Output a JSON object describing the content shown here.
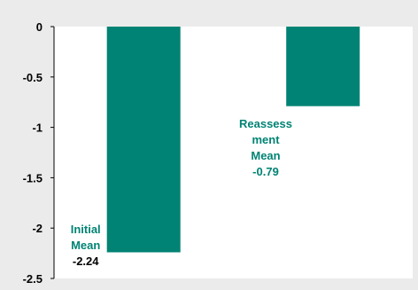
{
  "chart_data": {
    "type": "bar",
    "categories": [
      "Initial Mean",
      "Reassessment Mean"
    ],
    "values": [
      -2.24,
      -0.79
    ],
    "ylim": [
      -2.5,
      0
    ],
    "yticks": [
      "0",
      "-0.5",
      "-1",
      "-1.5",
      "-2",
      "-2.5"
    ],
    "ytick_values": [
      0,
      -0.5,
      -1,
      -1.5,
      -2,
      -2.5
    ],
    "grid": false,
    "legend": "none",
    "labels": [
      {
        "lines": [
          "Initial",
          "Mean",
          "-2.24"
        ]
      },
      {
        "lines": [
          "Reassess",
          "ment",
          "Mean",
          "-0.79"
        ]
      }
    ],
    "colors": {
      "bar": "#008374",
      "label": "#008374",
      "label_value": "#008374"
    }
  }
}
